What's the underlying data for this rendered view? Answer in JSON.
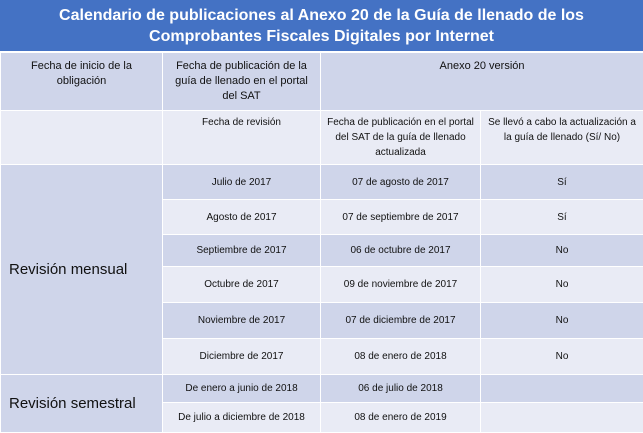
{
  "title": "Calendario de publicaciones al Anexo 20 de la Guía de llenado de los Comprobantes Fiscales Digitales por Internet",
  "header": {
    "row1": [
      "Fecha de inicio de la obligación",
      "Fecha de publicación de la guía de llenado en el portal del SAT",
      "Anexo 20 versión"
    ],
    "row2": [
      "Fecha de revisión",
      "Fecha de publicación en el portal del SAT de la guía de llenado actualizada",
      "Se llevó a cabo la actualización a la guía de llenado (Sí/ No)"
    ]
  },
  "groups": [
    {
      "label": "Revisión mensual",
      "rows": [
        [
          "Julio de 2017",
          "07 de agosto de 2017",
          "Sí"
        ],
        [
          "Agosto de 2017",
          "07 de septiembre de 2017",
          "Sí"
        ],
        [
          "Septiembre de 2017",
          "06 de octubre de 2017",
          "No"
        ],
        [
          "Octubre de 2017",
          "09 de noviembre de 2017",
          "No"
        ],
        [
          "Noviembre de 2017",
          "07 de diciembre de 2017",
          "No"
        ],
        [
          "Diciembre de 2017",
          "08 de enero de 2018",
          "No"
        ]
      ]
    },
    {
      "label": "Revisión semestral",
      "rows": [
        [
          "De enero a junio de 2018",
          "06 de julio de 2018"
        ],
        [
          "De julio a diciembre de 2018",
          "08 de enero de 2019"
        ]
      ]
    }
  ]
}
